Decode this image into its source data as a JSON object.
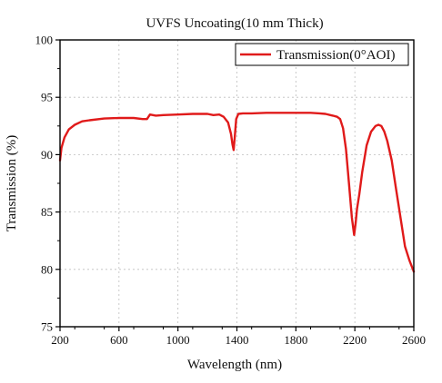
{
  "chart_data": {
    "type": "line",
    "title": "UVFS Uncoating(10 mm Thick)",
    "xlabel": "Wavelength (nm)",
    "ylabel": "Transmission (%)",
    "xlim": [
      200,
      2600
    ],
    "ylim": [
      75,
      100
    ],
    "xticks": [
      200,
      600,
      1000,
      1400,
      1800,
      2200,
      2600
    ],
    "yticks": [
      75,
      80,
      85,
      90,
      95,
      100
    ],
    "grid": true,
    "legend_position": "top-right",
    "colors": {
      "series": "#e01a1a",
      "grid": "#bdbdbd",
      "axis": "#000000"
    },
    "series": [
      {
        "name": "Transmission(0°AOI)",
        "x": [
          200,
          210,
          230,
          260,
          300,
          350,
          400,
          500,
          600,
          700,
          760,
          790,
          810,
          850,
          900,
          1000,
          1100,
          1200,
          1240,
          1280,
          1310,
          1340,
          1360,
          1370,
          1378,
          1385,
          1395,
          1410,
          1440,
          1500,
          1600,
          1700,
          1800,
          1900,
          1960,
          2000,
          2050,
          2080,
          2100,
          2120,
          2140,
          2160,
          2180,
          2195,
          2205,
          2215,
          2230,
          2250,
          2280,
          2310,
          2340,
          2360,
          2380,
          2400,
          2420,
          2450,
          2480,
          2510,
          2540,
          2570,
          2600
        ],
        "y": [
          89.5,
          90.6,
          91.5,
          92.2,
          92.6,
          92.9,
          93.0,
          93.15,
          93.2,
          93.2,
          93.1,
          93.1,
          93.5,
          93.4,
          93.45,
          93.5,
          93.55,
          93.55,
          93.45,
          93.5,
          93.3,
          92.8,
          91.8,
          90.9,
          90.4,
          91.5,
          93.1,
          93.55,
          93.6,
          93.6,
          93.65,
          93.65,
          93.65,
          93.65,
          93.6,
          93.55,
          93.4,
          93.3,
          93.1,
          92.3,
          90.5,
          87.5,
          84.5,
          83.0,
          84.0,
          85.3,
          86.5,
          88.5,
          90.8,
          92.0,
          92.5,
          92.6,
          92.5,
          92.0,
          91.2,
          89.5,
          87.0,
          84.5,
          82.0,
          80.8,
          79.8
        ]
      }
    ]
  }
}
